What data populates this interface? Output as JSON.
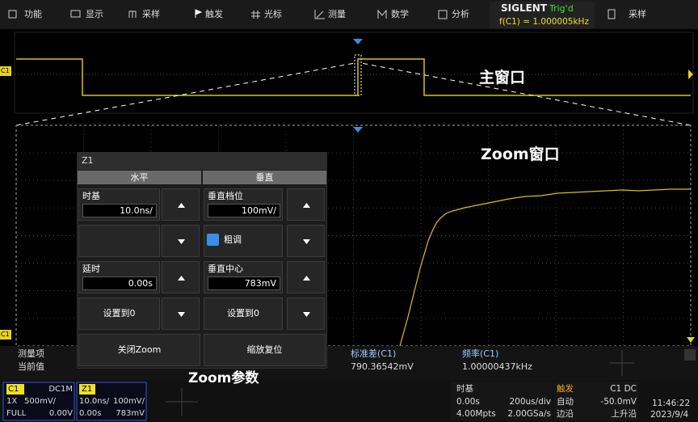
{
  "menu": {
    "items": [
      "功能",
      "显示",
      "采样",
      "触发",
      "光标",
      "测量",
      "数学",
      "分析"
    ],
    "brand": "SIGLENT",
    "status": "Trig'd",
    "frequency": "f(C1) = 1.000005kHz",
    "right_item": "采样"
  },
  "waveform": {
    "main_marker": "C1",
    "zoom_marker": "C1",
    "main_label": "主窗口",
    "zoom_label": "Zoom窗口",
    "params_label": "Zoom参数"
  },
  "dialog": {
    "title": "Z1",
    "tabs": [
      "水平",
      "垂直"
    ],
    "timebase_label": "时基",
    "timebase_value": "10.0ns/",
    "vscale_label": "垂直档位",
    "vscale_value": "100mV/",
    "coarse": "粗调",
    "delay_label": "延时",
    "delay_value": "0.00s",
    "vcenter_label": "垂直中心",
    "vcenter_value": "783mV",
    "set_zero_h": "设置到0",
    "set_zero_v": "设置到0",
    "close_zoom": "关闭Zoom",
    "zoom_reset": "缩放复位"
  },
  "measure": {
    "item_label": "测量项",
    "current_label": "当前值",
    "m1_name": "标准差(C1)",
    "m1_value": "790.36542mV",
    "m2_name": "频率(C1)",
    "m2_value": "1.00000437kHz"
  },
  "status_bar": {
    "c1": {
      "name": "C1",
      "coupling": "DC1M",
      "probe": "1X",
      "scale": "500mV/",
      "bandwidth": "FULL",
      "offset": "0.00V"
    },
    "z1": {
      "name": "Z1",
      "timebase": "10.0ns/",
      "vscale": "100mV/",
      "delay": "0.00s",
      "center": "783mV"
    },
    "timebase": {
      "title": "时基",
      "delay": "0.00s",
      "scale": "200us/div",
      "memory": "4.00Mpts",
      "rate": "2.00GSa/s"
    },
    "trigger": {
      "title": "触发",
      "source": "C1 DC",
      "mode": "自动",
      "level": "-50.0mV",
      "type": "边沿",
      "slope": "上升沿"
    },
    "clock": {
      "time": "11:46:22",
      "date": "2023/9/4"
    }
  }
}
